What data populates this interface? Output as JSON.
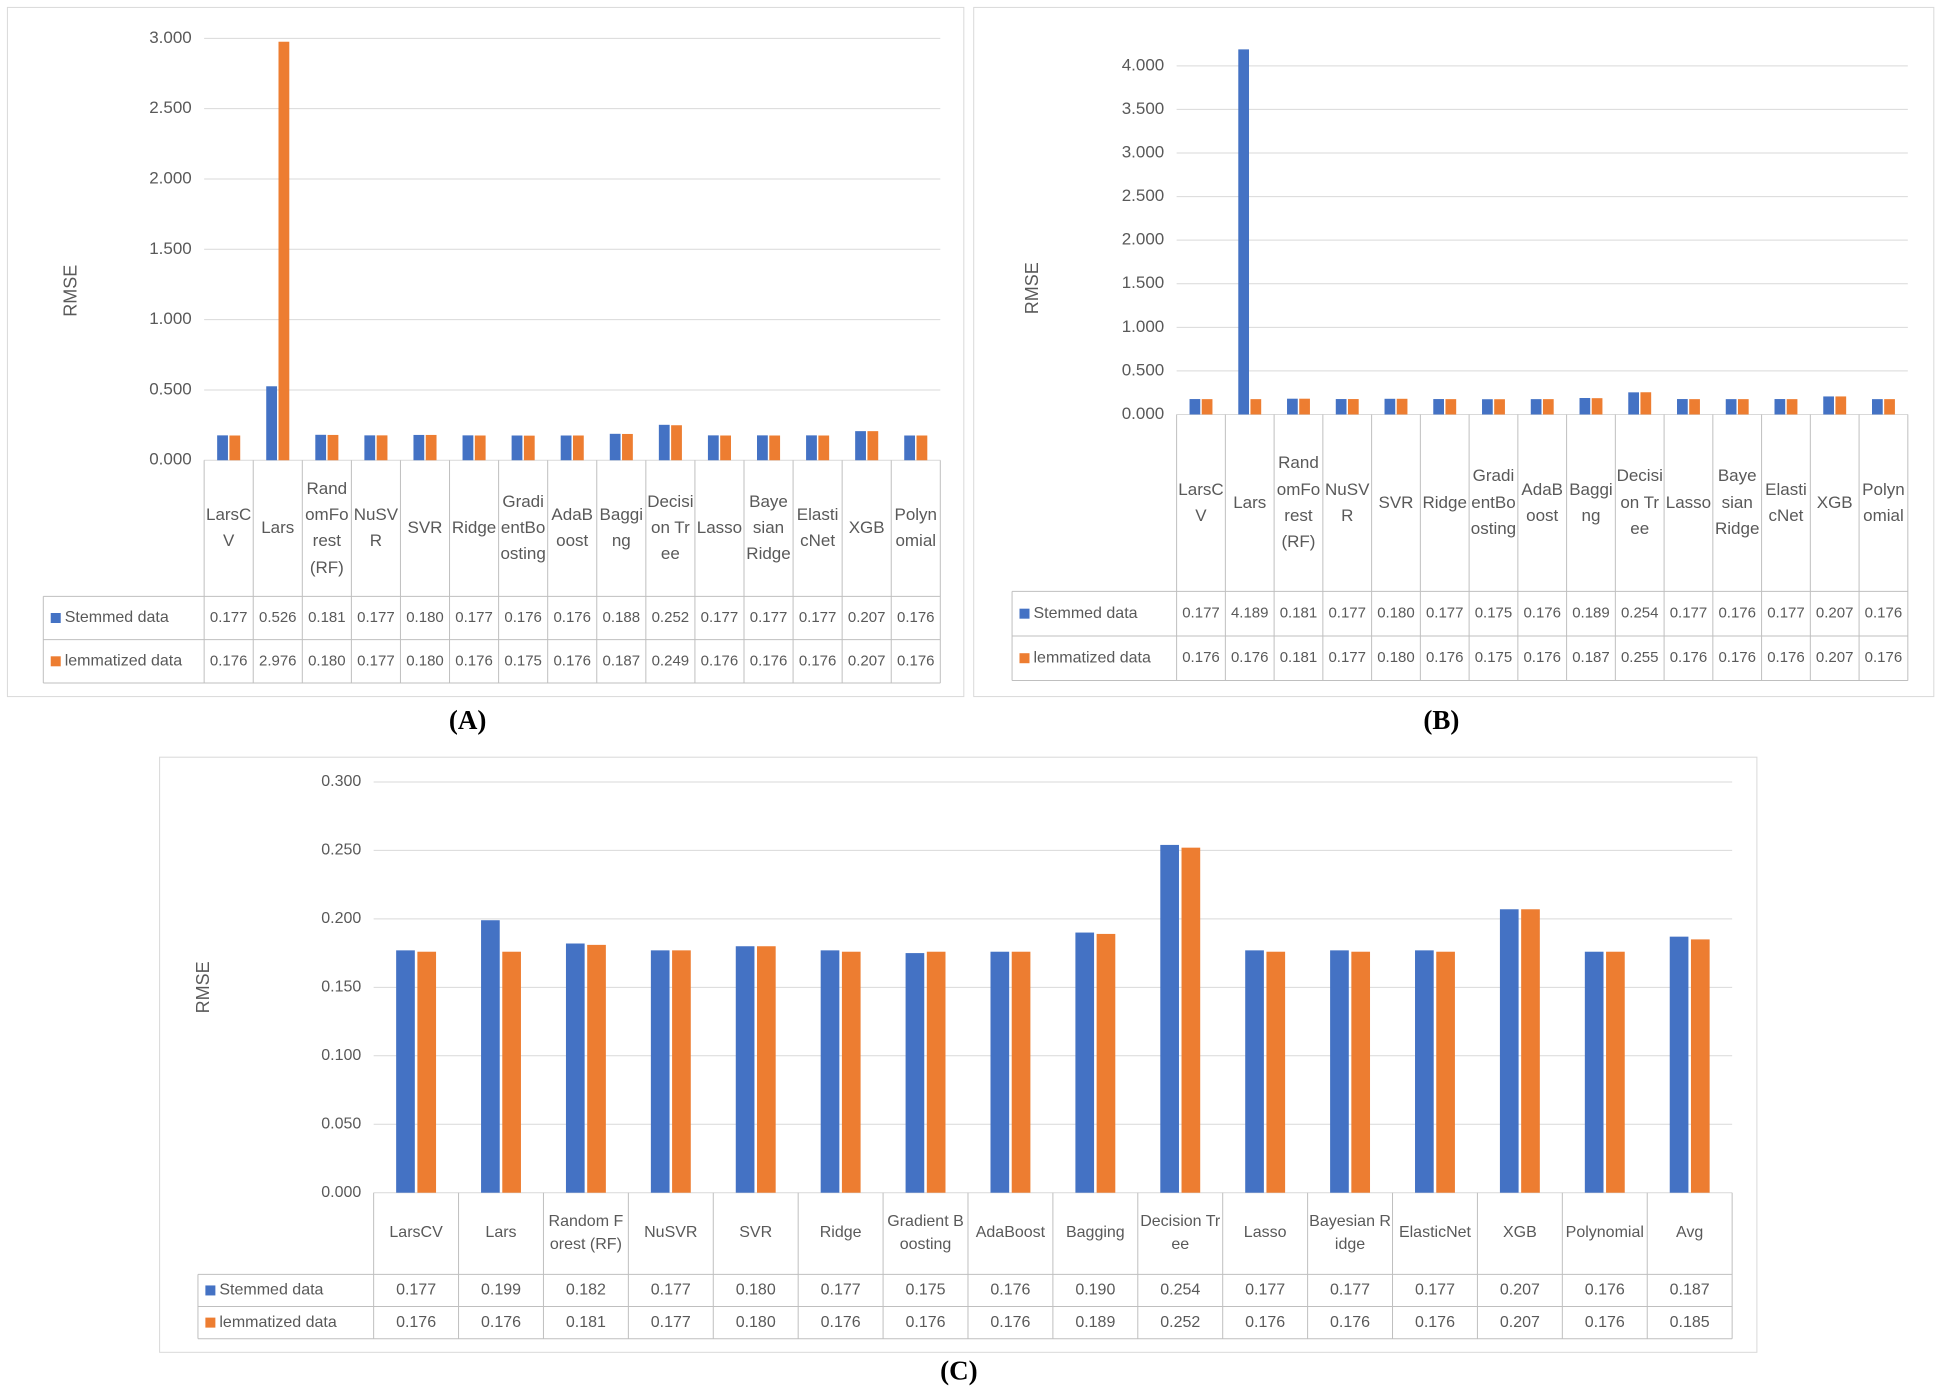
{
  "chart_data": [
    {
      "type": "bar",
      "panel_label": "(A)",
      "y_label": "RMSE",
      "categories": [
        "LarsCV",
        "Lars",
        "RandomForest (RF)",
        "NuSVR",
        "SVR",
        "Ridge",
        "GradientBoosting",
        "AdaBoost",
        "Bagging",
        "Decision Tree",
        "Lasso",
        "Bayesian Ridge",
        "ElasticNet",
        "XGB",
        "Polynomial"
      ],
      "series": [
        {
          "name": "Stemmed data",
          "color": "#4472c4",
          "values": [
            0.177,
            0.526,
            0.181,
            0.177,
            0.18,
            0.177,
            0.176,
            0.176,
            0.188,
            0.252,
            0.177,
            0.177,
            0.177,
            0.207,
            0.176
          ],
          "value_labels": [
            "0.177",
            "0.526",
            "0.181",
            "0.177",
            "0.180",
            "0.177",
            "0.176",
            "0.176",
            "0.188",
            "0.252",
            "0.177",
            "0.177",
            "0.177",
            "0.207",
            "0.176"
          ]
        },
        {
          "name": "lemmatized data",
          "color": "#ed7d31",
          "values": [
            0.176,
            2.976,
            0.18,
            0.177,
            0.18,
            0.176,
            0.175,
            0.176,
            0.187,
            0.249,
            0.176,
            0.176,
            0.176,
            0.207,
            0.176
          ],
          "value_labels": [
            "0.176",
            "2.976",
            "0.180",
            "0.177",
            "0.180",
            "0.176",
            "0.175",
            "0.176",
            "0.187",
            "0.249",
            "0.176",
            "0.176",
            "0.176",
            "0.207",
            "0.176"
          ]
        }
      ],
      "ylim": [
        0,
        3
      ],
      "yticks": [
        {
          "value": 0,
          "label": "0.000"
        },
        {
          "value": 0.5,
          "label": "0.500"
        },
        {
          "value": 1,
          "label": "1.000"
        },
        {
          "value": 1.5,
          "label": "1.500"
        },
        {
          "value": 2,
          "label": "2.000"
        },
        {
          "value": 2.5,
          "label": "2.500"
        },
        {
          "value": 3,
          "label": "3.000"
        }
      ],
      "grid": true
    },
    {
      "type": "bar",
      "panel_label": "(B)",
      "y_label": "RMSE",
      "categories": [
        "LarsCV",
        "Lars",
        "RandomForest (RF)",
        "NuSVR",
        "SVR",
        "Ridge",
        "GradientBoosting",
        "AdaBoost",
        "Bagging",
        "Decision Tree",
        "Lasso",
        "Bayesian Ridge",
        "ElasticNet",
        "XGB",
        "Polynomial"
      ],
      "series": [
        {
          "name": "Stemmed data",
          "color": "#4472c4",
          "values": [
            0.177,
            4.189,
            0.181,
            0.177,
            0.18,
            0.177,
            0.175,
            0.176,
            0.189,
            0.254,
            0.177,
            0.176,
            0.177,
            0.207,
            0.176
          ],
          "value_labels": [
            "0.177",
            "4.189",
            "0.181",
            "0.177",
            "0.180",
            "0.177",
            "0.175",
            "0.176",
            "0.189",
            "0.254",
            "0.177",
            "0.176",
            "0.177",
            "0.207",
            "0.176"
          ]
        },
        {
          "name": "lemmatized data",
          "color": "#ed7d31",
          "values": [
            0.176,
            0.176,
            0.181,
            0.177,
            0.18,
            0.176,
            0.175,
            0.176,
            0.187,
            0.255,
            0.176,
            0.176,
            0.176,
            0.207,
            0.176
          ],
          "value_labels": [
            "0.176",
            "0.176",
            "0.181",
            "0.177",
            "0.180",
            "0.176",
            "0.175",
            "0.176",
            "0.187",
            "0.255",
            "0.176",
            "0.176",
            "0.176",
            "0.207",
            "0.176"
          ]
        }
      ],
      "ylim": [
        0,
        4.5
      ],
      "yticks": [
        {
          "value": 0,
          "label": "0.000"
        },
        {
          "value": 0.5,
          "label": "0.500"
        },
        {
          "value": 1,
          "label": "1.000"
        },
        {
          "value": 1.5,
          "label": "1.500"
        },
        {
          "value": 2,
          "label": "2.000"
        },
        {
          "value": 2.5,
          "label": "2.500"
        },
        {
          "value": 3,
          "label": "3.000"
        },
        {
          "value": 3.5,
          "label": "3.500"
        },
        {
          "value": 4,
          "label": "4.000"
        }
      ],
      "grid": true
    },
    {
      "type": "bar",
      "panel_label": "(C)",
      "y_label": "RMSE",
      "categories": [
        "LarsCV",
        "Lars",
        "Random Forest (RF)",
        "NuSVR",
        "SVR",
        "Ridge",
        "Gradient Boosting",
        "AdaBoost",
        "Bagging",
        "Decision Tree",
        "Lasso",
        "Bayesian Ridge",
        "ElasticNet",
        "XGB",
        "Polynomial",
        "Avg"
      ],
      "series": [
        {
          "name": "Stemmed data",
          "color": "#4472c4",
          "values": [
            0.177,
            0.199,
            0.182,
            0.177,
            0.18,
            0.177,
            0.175,
            0.176,
            0.19,
            0.254,
            0.177,
            0.177,
            0.177,
            0.207,
            0.176,
            0.187
          ],
          "value_labels": [
            "0.177",
            "0.199",
            "0.182",
            "0.177",
            "0.180",
            "0.177",
            "0.175",
            "0.176",
            "0.190",
            "0.254",
            "0.177",
            "0.177",
            "0.177",
            "0.207",
            "0.176",
            "0.187"
          ]
        },
        {
          "name": "lemmatized data",
          "color": "#ed7d31",
          "values": [
            0.176,
            0.176,
            0.181,
            0.177,
            0.18,
            0.176,
            0.176,
            0.176,
            0.189,
            0.252,
            0.176,
            0.176,
            0.176,
            0.207,
            0.176,
            0.185
          ],
          "value_labels": [
            "0.176",
            "0.176",
            "0.181",
            "0.177",
            "0.180",
            "0.176",
            "0.176",
            "0.176",
            "0.189",
            "0.252",
            "0.176",
            "0.176",
            "0.176",
            "0.207",
            "0.176",
            "0.185"
          ]
        }
      ],
      "ylim": [
        0,
        0.3
      ],
      "yticks": [
        {
          "value": 0,
          "label": "0.000"
        },
        {
          "value": 0.05,
          "label": "0.050"
        },
        {
          "value": 0.1,
          "label": "0.100"
        },
        {
          "value": 0.15,
          "label": "0.150"
        },
        {
          "value": 0.2,
          "label": "0.200"
        },
        {
          "value": 0.25,
          "label": "0.250"
        },
        {
          "value": 0.3,
          "label": "0.300"
        }
      ],
      "grid": true
    }
  ]
}
